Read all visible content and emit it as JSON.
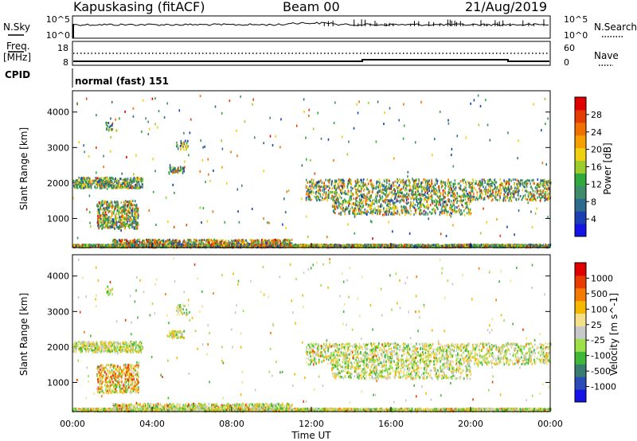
{
  "header": {
    "title": "Kapuskasing (fitACF)",
    "beam": "Beam 00",
    "date": "21/Aug/2019"
  },
  "nsky_panel": {
    "left_label": "N.Sky",
    "right_label": "N.Search",
    "left_ticks": [
      "10^5",
      "10^0"
    ],
    "right_ticks": [
      "10^5",
      "10^0"
    ]
  },
  "freq_panel": {
    "left_label_top": "Freq.",
    "left_label_bottom": "[MHz]",
    "left_ticks": [
      "18",
      "8"
    ],
    "right_ticks": [
      "60",
      "0"
    ],
    "right_label": "Nave"
  },
  "cpid": {
    "label": "CPID",
    "value": "normal (fast) 151"
  },
  "chart_data": [
    {
      "type": "heatmap",
      "name": "power",
      "ylabel": "Slant Range [km]",
      "ylim": [
        180,
        4600
      ],
      "yticks": [
        1000,
        2000,
        3000,
        4000
      ],
      "xlim": [
        0,
        24
      ],
      "xticks": [
        "00:00",
        "04:00",
        "08:00",
        "12:00",
        "16:00",
        "20:00",
        "00:00"
      ],
      "colorbar": {
        "label": "Power [dB]",
        "range": [
          0,
          32
        ],
        "ticks": [
          4,
          8,
          12,
          16,
          20,
          24,
          28
        ],
        "colors": [
          "#1414e6",
          "#1c3fb4",
          "#2f6b8c",
          "#3f8c6c",
          "#2fa83c",
          "#9ccc2c",
          "#f0d010",
          "#f5a000",
          "#f07000",
          "#e63c00",
          "#e00000"
        ]
      }
    },
    {
      "type": "heatmap",
      "name": "velocity",
      "ylabel": "Slant Range [km]",
      "xlabel": "Time UT",
      "ylim": [
        180,
        4600
      ],
      "yticks": [
        1000,
        2000,
        3000,
        4000
      ],
      "xlim": [
        0,
        24
      ],
      "xticks": [
        "00:00",
        "04:00",
        "08:00",
        "12:00",
        "16:00",
        "20:00",
        "00:00"
      ],
      "colorbar": {
        "label": "Velocity [m s^-1]",
        "ticks": [
          "1000",
          "500",
          "100",
          "25",
          "-25",
          "-100",
          "-500",
          "-1000"
        ],
        "colors": [
          "#1414e6",
          "#2a4bb8",
          "#3a7c70",
          "#3fb83a",
          "#9ee04a",
          "#c8c8c8",
          "#f5e08a",
          "#f5b800",
          "#f57a00",
          "#e83c00",
          "#e00000"
        ]
      }
    }
  ]
}
